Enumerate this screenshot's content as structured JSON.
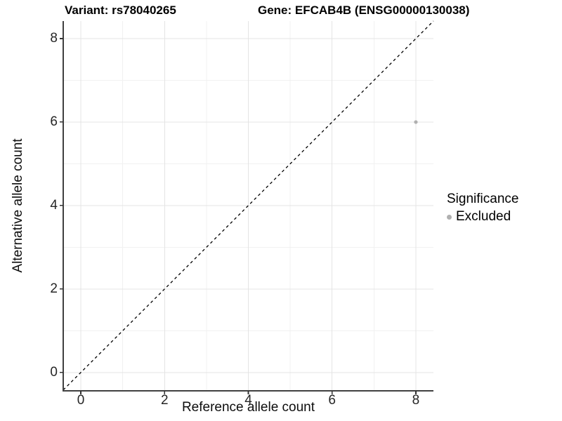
{
  "titles": {
    "variant": "Variant: rs78040265",
    "gene": "Gene: EFCAB4B (ENSG00000130038)"
  },
  "chart_data": {
    "type": "scatter",
    "xlabel": "Reference allele count",
    "ylabel": "Alternative allele count",
    "xlim": [
      -0.42,
      8.42
    ],
    "ylim": [
      -0.44,
      8.42
    ],
    "x_ticks": [
      0,
      2,
      4,
      6,
      8
    ],
    "y_ticks": [
      0,
      2,
      4,
      6,
      8
    ],
    "x_minor": [
      1,
      3,
      5,
      7
    ],
    "y_minor": [
      1,
      3,
      5,
      7
    ],
    "grid": true,
    "series": [
      {
        "name": "Excluded",
        "color": "#b0b0b0",
        "points": [
          {
            "x": 8,
            "y": 6
          }
        ]
      }
    ],
    "reference_line": {
      "type": "identity",
      "slope": 1,
      "intercept": 0,
      "style": "dashed",
      "color": "#000000"
    },
    "legend": {
      "title": "Significance",
      "position": "right",
      "entries": [
        {
          "label": "Excluded",
          "color": "#b0b0b0"
        }
      ]
    }
  },
  "colors": {
    "background": "#ffffff",
    "grid_major": "#e4e4e4",
    "grid_minor": "#f1f1f1",
    "axis_line": "#404040",
    "tick_mark": "#333333",
    "tick_label": "#262626",
    "point": "#b0b0b0"
  }
}
